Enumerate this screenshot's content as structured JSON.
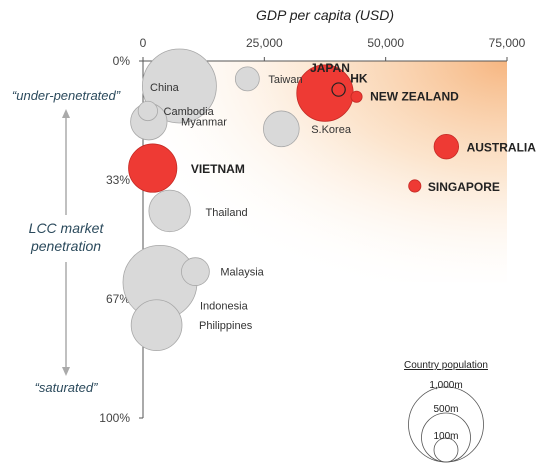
{
  "chart_data": {
    "type": "scatter",
    "title": "",
    "xlabel": "GDP per capita (USD)",
    "ylabel": "LCC market penetration",
    "xlim": [
      0,
      75000
    ],
    "ylim": [
      0,
      100
    ],
    "y_inverted": true,
    "x_ticks": [
      "0",
      "25,000",
      "50,000",
      "75,000"
    ],
    "y_ticks": [
      "0%",
      "33%",
      "67%",
      "100%"
    ],
    "y_top_note": "“under-penetrated”",
    "y_bottom_note": "“saturated”",
    "legend": {
      "title": "Country population",
      "entries": [
        "1,000m",
        "500m",
        "100m"
      ],
      "placement": "bottom-right"
    },
    "colors": {
      "highlight": "#ee3a34",
      "other": "#d9d9d9",
      "gradient": "#f6b27a"
    },
    "points": [
      {
        "name": "China",
        "x": 7500,
        "y": 7,
        "population_m": 1380,
        "highlight": false
      },
      {
        "name": "Taiwan",
        "x": 21500,
        "y": 5,
        "population_m": 23,
        "highlight": false
      },
      {
        "name": "Cambodia",
        "x": 1000,
        "y": 14,
        "population_m": 15,
        "highlight": false
      },
      {
        "name": "Myanmar",
        "x": 1200,
        "y": 17,
        "population_m": 53,
        "highlight": false
      },
      {
        "name": "S.Korea",
        "x": 28500,
        "y": 19,
        "population_m": 51,
        "highlight": false
      },
      {
        "name": "Thailand",
        "x": 5500,
        "y": 42,
        "population_m": 69,
        "highlight": false
      },
      {
        "name": "Malaysia",
        "x": 10800,
        "y": 59,
        "population_m": 31,
        "highlight": false
      },
      {
        "name": "Indonesia",
        "x": 3500,
        "y": 62,
        "population_m": 261,
        "highlight": false
      },
      {
        "name": "Philippines",
        "x": 2800,
        "y": 74,
        "population_m": 103,
        "highlight": false
      },
      {
        "name": "JAPAN",
        "x": 37500,
        "y": 9,
        "population_m": 127,
        "highlight": true
      },
      {
        "name": "HK",
        "x": 40300,
        "y": 8,
        "population_m": 7,
        "highlight": true
      },
      {
        "name": "NEW ZEALAND",
        "x": 44000,
        "y": 10,
        "population_m": 5,
        "highlight": true
      },
      {
        "name": "VIETNAM",
        "x": 2000,
        "y": 30,
        "population_m": 93,
        "highlight": true
      },
      {
        "name": "AUSTRALIA",
        "x": 62500,
        "y": 24,
        "population_m": 24,
        "highlight": true
      },
      {
        "name": "SINGAPORE",
        "x": 56000,
        "y": 35,
        "population_m": 6,
        "highlight": true
      }
    ]
  }
}
